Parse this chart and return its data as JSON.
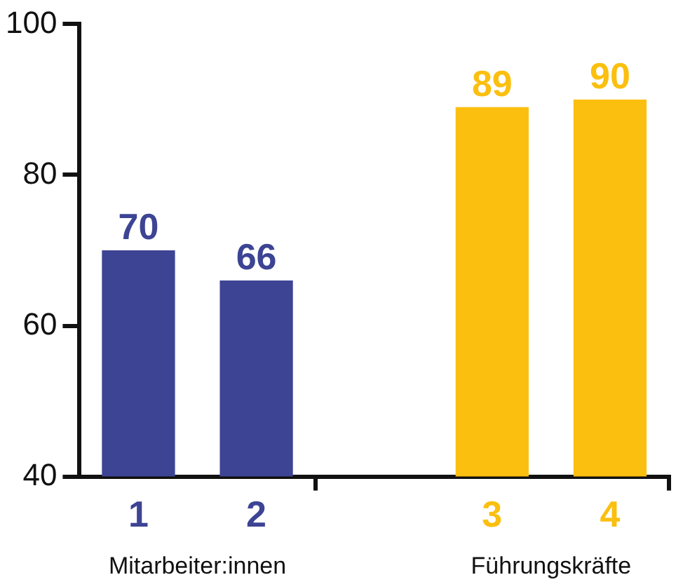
{
  "chart_data": {
    "type": "bar",
    "categories": [
      "1",
      "2",
      null,
      "3",
      "4"
    ],
    "values": [
      70,
      66,
      null,
      89,
      90
    ],
    "colors": [
      "#3d4494",
      "#3d4494",
      "#ffffff",
      "#fbbf0f",
      "#fbbf0f"
    ],
    "ylim": [
      40,
      100
    ],
    "yticks": [
      40,
      60,
      80,
      100
    ],
    "grid": false,
    "legend": false,
    "data_labels": true,
    "annotations": [
      "Mitarbeiter:innen",
      "Führungskräfte"
    ]
  }
}
